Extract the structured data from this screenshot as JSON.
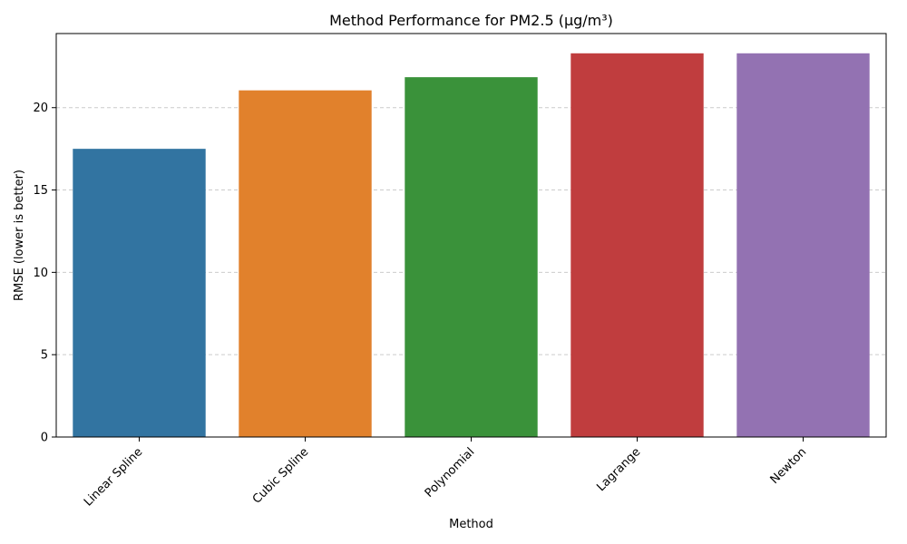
{
  "chart_data": {
    "type": "bar",
    "title": "Method Performance for PM2.5 (µg/m³)",
    "xlabel": "Method",
    "ylabel": "RMSE (lower is better)",
    "categories": [
      "Linear Spline",
      "Cubic Spline",
      "Polynomial",
      "Lagrange",
      "Newton"
    ],
    "values": [
      17.5,
      21.05,
      21.85,
      23.3,
      23.3
    ],
    "colors": [
      "#3274a1",
      "#e1812c",
      "#3a923a",
      "#c03d3e",
      "#9372b2"
    ],
    "ylim": [
      0,
      24.5
    ],
    "yticks": [
      0,
      5,
      10,
      15,
      20
    ],
    "ytick_labels": [
      "0",
      "5",
      "10",
      "15",
      "20"
    ],
    "grid": "y-dashed",
    "legend": "none"
  }
}
